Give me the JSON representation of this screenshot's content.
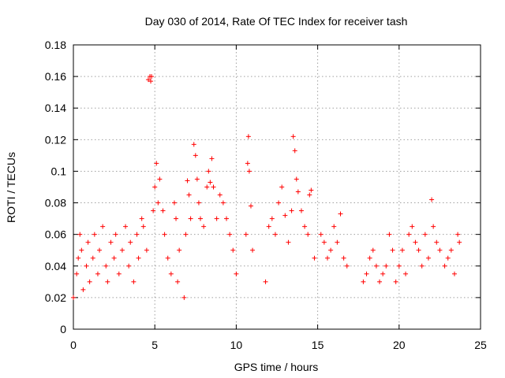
{
  "chart_data": {
    "type": "scatter",
    "title": "Day 030 of 2014, Rate Of TEC Index for receiver tash",
    "xlabel": "GPS time / hours",
    "ylabel": "ROTI / TECUs",
    "xlim": [
      0,
      25
    ],
    "ylim": [
      0,
      0.18
    ],
    "xticks": [
      0,
      5,
      10,
      15,
      20,
      25
    ],
    "xtick_labels": [
      "0",
      "5",
      "10",
      "15",
      "20",
      "25"
    ],
    "yticks": [
      0,
      0.02,
      0.04,
      0.06,
      0.08,
      0.1,
      0.12,
      0.14,
      0.16,
      0.18
    ],
    "ytick_labels": [
      "0",
      "0.02",
      "0.04",
      "0.06",
      "0.08",
      "0.1",
      "0.12",
      "0.14",
      "0.16",
      "0.18"
    ],
    "grid": true,
    "marker": "+",
    "color": "#ff0000",
    "series": [
      {
        "name": "ROTI",
        "x": [
          0.0,
          0.2,
          0.3,
          0.4,
          0.5,
          0.6,
          0.8,
          0.9,
          1.0,
          1.2,
          1.3,
          1.5,
          1.6,
          1.8,
          2.0,
          2.1,
          2.3,
          2.5,
          2.6,
          2.8,
          3.0,
          3.2,
          3.4,
          3.5,
          3.7,
          3.9,
          4.0,
          4.2,
          4.3,
          4.5,
          4.6,
          4.7,
          4.75,
          4.8,
          4.9,
          5.0,
          5.1,
          5.2,
          5.3,
          5.5,
          5.6,
          5.8,
          6.0,
          6.2,
          6.3,
          6.4,
          6.5,
          6.8,
          6.9,
          7.0,
          7.1,
          7.2,
          7.4,
          7.5,
          7.6,
          7.7,
          7.8,
          8.0,
          8.2,
          8.3,
          8.4,
          8.5,
          8.6,
          8.8,
          9.0,
          9.2,
          9.4,
          9.6,
          9.8,
          10.0,
          10.6,
          10.7,
          10.75,
          10.8,
          10.9,
          11.0,
          11.8,
          12.0,
          12.2,
          12.4,
          12.6,
          12.8,
          13.0,
          13.2,
          13.4,
          13.5,
          13.6,
          13.7,
          13.8,
          14.0,
          14.2,
          14.4,
          14.5,
          14.6,
          14.8,
          15.2,
          15.4,
          15.6,
          15.8,
          16.0,
          16.2,
          16.4,
          16.6,
          16.8,
          17.8,
          18.0,
          18.2,
          18.4,
          18.6,
          18.8,
          19.0,
          19.2,
          19.4,
          19.6,
          19.8,
          20.0,
          20.2,
          20.4,
          20.6,
          20.8,
          21.0,
          21.2,
          21.4,
          21.6,
          21.8,
          22.0,
          22.1,
          22.3,
          22.5,
          22.8,
          23.0,
          23.2,
          23.4,
          23.6,
          23.7
        ],
        "y": [
          0.02,
          0.035,
          0.045,
          0.06,
          0.05,
          0.025,
          0.04,
          0.055,
          0.03,
          0.045,
          0.06,
          0.035,
          0.05,
          0.065,
          0.04,
          0.03,
          0.055,
          0.045,
          0.06,
          0.035,
          0.05,
          0.065,
          0.04,
          0.055,
          0.03,
          0.06,
          0.045,
          0.07,
          0.065,
          0.05,
          0.158,
          0.16,
          0.157,
          0.16,
          0.075,
          0.09,
          0.105,
          0.08,
          0.095,
          0.075,
          0.06,
          0.045,
          0.035,
          0.08,
          0.07,
          0.03,
          0.05,
          0.02,
          0.06,
          0.094,
          0.085,
          0.07,
          0.117,
          0.11,
          0.095,
          0.08,
          0.07,
          0.065,
          0.09,
          0.1,
          0.093,
          0.108,
          0.09,
          0.07,
          0.085,
          0.08,
          0.07,
          0.06,
          0.05,
          0.035,
          0.06,
          0.105,
          0.122,
          0.1,
          0.078,
          0.05,
          0.03,
          0.065,
          0.07,
          0.06,
          0.08,
          0.09,
          0.072,
          0.055,
          0.075,
          0.122,
          0.113,
          0.095,
          0.087,
          0.075,
          0.065,
          0.06,
          0.085,
          0.088,
          0.045,
          0.06,
          0.055,
          0.045,
          0.05,
          0.065,
          0.055,
          0.073,
          0.045,
          0.04,
          0.03,
          0.035,
          0.045,
          0.05,
          0.04,
          0.03,
          0.035,
          0.04,
          0.06,
          0.05,
          0.03,
          0.04,
          0.05,
          0.035,
          0.06,
          0.065,
          0.055,
          0.05,
          0.04,
          0.06,
          0.045,
          0.082,
          0.065,
          0.055,
          0.05,
          0.04,
          0.045,
          0.05,
          0.035,
          0.06,
          0.055
        ]
      }
    ]
  }
}
